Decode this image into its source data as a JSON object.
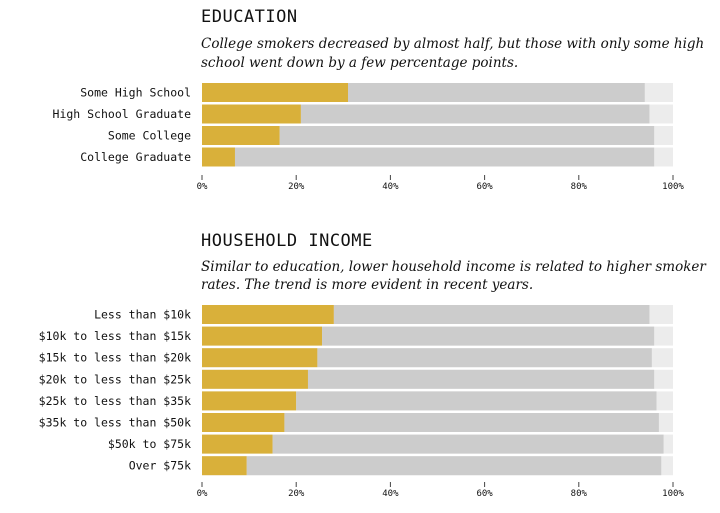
{
  "colors": {
    "accent": "#d9b03a",
    "remainder": "#cccccc",
    "track": "#ececec"
  },
  "chart_data": [
    {
      "type": "bar",
      "orientation": "horizontal",
      "stacked": true,
      "title": "EDUCATION",
      "subtitle_lines": [
        "College smokers decreased by almost half, but those with only some high",
        "school went down by a few percentage points."
      ],
      "categories": [
        "Some High School",
        "High School Graduate",
        "Some College",
        "College Graduate"
      ],
      "series": [
        {
          "values": [
            31,
            21,
            16.5,
            7
          ]
        },
        {
          "values": [
            63,
            74,
            79.5,
            89
          ]
        }
      ],
      "xlim": [
        0,
        100
      ],
      "x_ticks": [
        "0%",
        "20%",
        "40%",
        "60%",
        "80%",
        "100%"
      ],
      "grid": false
    },
    {
      "type": "bar",
      "orientation": "horizontal",
      "stacked": true,
      "title": "HOUSEHOLD INCOME",
      "subtitle_lines": [
        "Similar to education, lower household income is related to higher smoker",
        "rates. The trend is more evident in recent years."
      ],
      "categories": [
        "Less than $10k",
        "$10k to less than $15k",
        "$15k to less than $20k",
        "$20k to less than $25k",
        "$25k to less than $35k",
        "$35k to less than $50k",
        "$50k to $75k",
        "Over $75k"
      ],
      "series": [
        {
          "values": [
            28,
            25.5,
            24.5,
            22.5,
            20,
            17.5,
            15,
            9.5
          ]
        },
        {
          "values": [
            67,
            70.5,
            71,
            73.5,
            76.5,
            79.5,
            83,
            88
          ]
        }
      ],
      "xlim": [
        0,
        100
      ],
      "x_ticks": [
        "0%",
        "20%",
        "40%",
        "60%",
        "80%",
        "100%"
      ],
      "grid": false
    }
  ]
}
